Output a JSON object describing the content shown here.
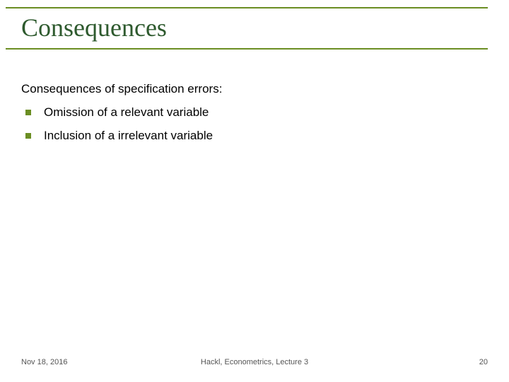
{
  "slide": {
    "title": "Consequences",
    "intro": "Consequences of specification errors:",
    "bullets": [
      {
        "text": "Omission of a relevant variable"
      },
      {
        "text": "Inclusion of a irrelevant variable"
      }
    ],
    "footer": {
      "date": "Nov 18, 2016",
      "center": "Hackl, Econometrics, Lecture 3",
      "page": "20"
    },
    "colors": {
      "accent": "#6b8e23",
      "title_text": "#2e5a2e",
      "body_text": "#000000",
      "footer_text": "#555555",
      "background": "#ffffff"
    },
    "typography": {
      "title_fontsize_pt": 27,
      "body_fontsize_pt": 13,
      "footer_fontsize_pt": 8,
      "title_font_family": "Times New Roman",
      "body_font_family": "Arial"
    }
  }
}
